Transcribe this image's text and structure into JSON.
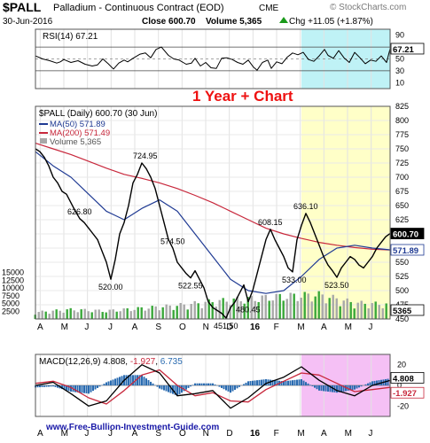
{
  "header": {
    "symbol": "$PALL",
    "name": "Palladium - Continuous Contract (EOD)",
    "exchange": "CME",
    "copyright": "© StockCharts.com",
    "date": "30-Jun-2016",
    "close_label": "Close 600.70",
    "volume_label": "Volume 5,365",
    "change_label": "Chg +11.05 (+1.87%)",
    "change_arrow": "up-triangle-icon"
  },
  "annotation": "1 Year + Chart",
  "watermark": "www.Free-Bullion-Investment-Guide.com",
  "colors": {
    "price": "#000000",
    "ma50": "#1f3a93",
    "ma200": "#c8283c",
    "volume_bar": "#a8a8a8",
    "volume_up": "#3aa83a",
    "highlight_yellow": "#ffffc8",
    "highlight_cyan": "#bff2f6",
    "highlight_magenta": "#f5c0f5",
    "annotation_red": "#ee1111",
    "macd_hist": "#2a6bb0",
    "rsi_line": "#000000"
  },
  "chart_data": [
    {
      "type": "line",
      "panel": "rsi",
      "label": "RSI(14) 67.21",
      "ylim": [
        0,
        100
      ],
      "yticks": [
        "90",
        "70",
        "50",
        "30",
        "10"
      ],
      "last_value_label": "67.21",
      "reference_lines": [
        30,
        50,
        70
      ],
      "series": [
        {
          "name": "RSI(14)",
          "x": [
            0,
            8,
            16,
            24,
            28,
            32,
            40,
            48,
            56,
            64,
            70,
            76,
            82,
            88,
            94,
            100,
            104,
            110,
            118,
            124,
            130,
            136,
            142,
            150,
            156,
            162,
            170,
            176,
            180,
            186,
            192,
            198,
            204,
            210,
            216,
            222,
            228,
            234,
            240,
            246,
            250,
            256,
            262,
            266,
            272,
            278,
            284,
            290,
            296,
            302,
            308,
            314,
            320,
            326,
            330,
            336,
            342,
            348,
            354,
            360,
            366,
            372,
            378,
            384,
            390,
            396,
            400
          ],
          "y": [
            55,
            50,
            47,
            43,
            45,
            49,
            44,
            47,
            41,
            38,
            40,
            50,
            42,
            33,
            43,
            48,
            45,
            51,
            58,
            60,
            52,
            66,
            70,
            56,
            50,
            48,
            41,
            43,
            51,
            38,
            44,
            35,
            34,
            51,
            52,
            49,
            44,
            41,
            48,
            36,
            31,
            44,
            48,
            34,
            45,
            42,
            53,
            60,
            57,
            61,
            49,
            46,
            55,
            66,
            56,
            51,
            64,
            52,
            44,
            61,
            52,
            42,
            48,
            46,
            55,
            44,
            67.21
          ]
        }
      ]
    },
    {
      "type": "line",
      "panel": "price",
      "title": "$PALL (Daily) 600.70 (30 Jun)",
      "ylim": [
        450,
        825
      ],
      "yticks": [
        "825",
        "800",
        "775",
        "750",
        "725",
        "700",
        "675",
        "650",
        "625",
        "600",
        "575",
        "550",
        "525",
        "500",
        "475",
        "450"
      ],
      "volume_ticks": [
        "15000",
        "12500",
        "10000",
        "7500",
        "5000",
        "2500"
      ],
      "volume_ylim": [
        0,
        20000
      ],
      "last_price_label": "600.70",
      "last_ma50_label": "571.89",
      "last_volume_label": "5365",
      "series": [
        {
          "name": "$PALL (Daily) 600.70 (30 Jun)",
          "x": [
            0,
            5,
            10,
            15,
            20,
            25,
            30,
            35,
            40,
            45,
            50,
            55,
            60,
            65,
            70,
            75,
            80,
            85,
            90,
            95,
            100,
            105,
            110,
            115,
            120,
            125,
            130,
            135,
            140,
            145,
            150,
            155,
            160,
            165,
            170,
            175,
            180,
            185,
            190,
            195,
            200,
            205,
            210,
            215,
            220,
            225,
            230,
            235,
            240,
            245,
            250,
            255,
            260,
            265,
            270,
            275,
            280,
            285,
            290,
            295,
            300,
            305,
            310,
            315,
            320,
            325,
            330,
            335,
            340,
            345,
            350,
            355,
            360,
            365,
            370,
            375,
            380,
            385,
            390,
            395,
            400
          ],
          "y": [
            750,
            745,
            735,
            720,
            700,
            690,
            675,
            670,
            655,
            640,
            626.8,
            620,
            610,
            600,
            590,
            570,
            550,
            520,
            555,
            600,
            620,
            650,
            690,
            705,
            724.95,
            715,
            700,
            680,
            650,
            620,
            590,
            574.5,
            550,
            540,
            530,
            522.55,
            535,
            520,
            505,
            480,
            470,
            465,
            460,
            451.5,
            470,
            480,
            495,
            510,
            480.45,
            500,
            530,
            560,
            590,
            608.15,
            590,
            575,
            560,
            540,
            533,
            590,
            615,
            636.1,
            620,
            600,
            580,
            560,
            545,
            535,
            523.5,
            540,
            550,
            560,
            555,
            545,
            540,
            550,
            560,
            575,
            585,
            595,
            600.7
          ]
        },
        {
          "name": "MA(50) 571.89",
          "x": [
            0,
            20,
            40,
            60,
            80,
            100,
            120,
            140,
            160,
            180,
            200,
            220,
            240,
            260,
            280,
            300,
            320,
            340,
            360,
            380,
            400
          ],
          "y": [
            745,
            720,
            700,
            670,
            640,
            625,
            645,
            660,
            640,
            600,
            560,
            520,
            500,
            495,
            500,
            525,
            555,
            575,
            580,
            575,
            571.89
          ]
        },
        {
          "name": "MA(200) 571.49",
          "x": [
            0,
            20,
            40,
            60,
            80,
            100,
            120,
            140,
            160,
            180,
            200,
            220,
            240,
            260,
            280,
            300,
            320,
            340,
            360,
            380,
            400
          ],
          "y": [
            760,
            750,
            740,
            728,
            716,
            705,
            698,
            690,
            680,
            668,
            655,
            640,
            625,
            610,
            600,
            592,
            585,
            580,
            576,
            573,
            571.49
          ]
        },
        {
          "name": "Volume 5,365",
          "x": [
            0,
            40,
            80,
            120,
            160,
            200,
            240,
            280,
            320,
            360,
            400
          ],
          "y": [
            2500,
            3500,
            3000,
            4000,
            5000,
            6500,
            7500,
            8500,
            9000,
            6000,
            5365
          ]
        }
      ],
      "data_labels": [
        {
          "x": 50,
          "y": 626.8,
          "text": "626.80"
        },
        {
          "x": 85,
          "y": 520,
          "text": "520.00"
        },
        {
          "x": 124,
          "y": 724.95,
          "text": "724.95"
        },
        {
          "x": 155,
          "y": 574.5,
          "text": "574.50"
        },
        {
          "x": 175,
          "y": 522.55,
          "text": "522.55"
        },
        {
          "x": 215,
          "y": 451.5,
          "text": "451.50"
        },
        {
          "x": 240,
          "y": 480.45,
          "text": "480.45"
        },
        {
          "x": 265,
          "y": 608.15,
          "text": "608.15"
        },
        {
          "x": 292,
          "y": 533,
          "text": "533.00"
        },
        {
          "x": 305,
          "y": 636.1,
          "text": "636.10"
        },
        {
          "x": 340,
          "y": 523.5,
          "text": "523.50"
        }
      ]
    },
    {
      "type": "line",
      "panel": "macd",
      "label_prefix": "MACD(12,26,9)",
      "label_macd": "4.808",
      "label_signal": "-1.927",
      "label_hist": "6.735",
      "ylim": [
        -30,
        30
      ],
      "yticks": [
        "20",
        "0",
        "-20"
      ],
      "last_macd_label": "4.808",
      "last_signal_label": "-1.927",
      "series": [
        {
          "name": "MACD",
          "x": [
            0,
            20,
            40,
            60,
            80,
            100,
            120,
            140,
            160,
            180,
            200,
            220,
            240,
            260,
            280,
            300,
            320,
            340,
            360,
            380,
            400
          ],
          "y": [
            0,
            3,
            -8,
            -20,
            -15,
            5,
            20,
            12,
            -10,
            -8,
            -5,
            -22,
            -12,
            2,
            8,
            18,
            5,
            -5,
            -10,
            0,
            4.808
          ]
        },
        {
          "name": "Signal",
          "x": [
            0,
            20,
            40,
            60,
            80,
            100,
            120,
            140,
            160,
            180,
            200,
            220,
            240,
            260,
            280,
            300,
            320,
            340,
            360,
            380,
            400
          ],
          "y": [
            2,
            4,
            -2,
            -12,
            -18,
            -5,
            10,
            15,
            0,
            -10,
            -7,
            -15,
            -16,
            -4,
            4,
            12,
            10,
            2,
            -6,
            -4,
            -1.927
          ]
        },
        {
          "name": "Histogram",
          "x": [
            0,
            20,
            40,
            60,
            80,
            100,
            120,
            140,
            160,
            180,
            200,
            220,
            240,
            260,
            280,
            300,
            320,
            340,
            360,
            380,
            400
          ],
          "y": [
            -2,
            -1,
            -6,
            -8,
            3,
            10,
            10,
            -3,
            -10,
            2,
            2,
            -7,
            4,
            6,
            4,
            6,
            -5,
            -7,
            -4,
            4,
            6.735
          ]
        }
      ]
    }
  ],
  "x_axis_labels": [
    "A",
    "M",
    "J",
    "J",
    "A",
    "S",
    "O",
    "N",
    "D",
    "16",
    "F",
    "M",
    "A",
    "M",
    "J"
  ]
}
